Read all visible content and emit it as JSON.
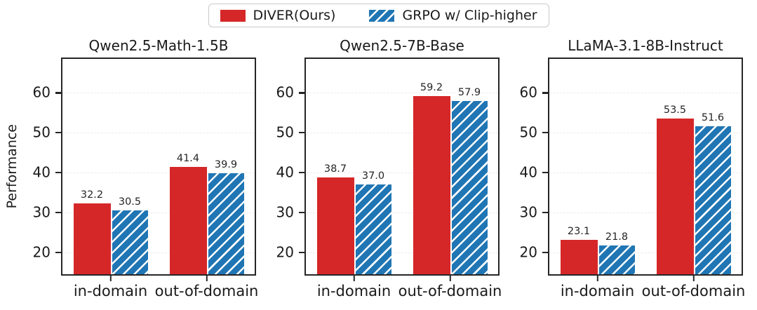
{
  "legend": {
    "items": [
      {
        "label": "DIVER(Ours)",
        "color": "#d62728",
        "hatch": false
      },
      {
        "label": "GRPO w/ Clip-higher",
        "color": "#2076b4",
        "hatch": true
      }
    ],
    "position": "top-center"
  },
  "ylabel": "Performance",
  "chart_data": [
    {
      "type": "bar",
      "title": "Qwen2.5-Math-1.5B",
      "categories": [
        "in-domain",
        "out-of-domain"
      ],
      "series": [
        {
          "name": "DIVER(Ours)",
          "color": "#d62728",
          "hatch": false,
          "values": [
            32.2,
            41.4
          ]
        },
        {
          "name": "GRPO w/ Clip-higher",
          "color": "#2076b4",
          "hatch": true,
          "values": [
            30.5,
            39.9
          ]
        }
      ],
      "xlabel": "",
      "ylabel": "Performance",
      "ylim": [
        14.5,
        68.5
      ],
      "yticks": [
        20,
        30,
        40,
        50,
        60
      ],
      "grid": true,
      "value_labels": true
    },
    {
      "type": "bar",
      "title": "Qwen2.5-7B-Base",
      "categories": [
        "in-domain",
        "out-of-domain"
      ],
      "series": [
        {
          "name": "DIVER(Ours)",
          "color": "#d62728",
          "hatch": false,
          "values": [
            38.7,
            59.2
          ]
        },
        {
          "name": "GRPO w/ Clip-higher",
          "color": "#2076b4",
          "hatch": true,
          "values": [
            37.0,
            57.9
          ]
        }
      ],
      "xlabel": "",
      "ylabel": "",
      "ylim": [
        14.5,
        68.5
      ],
      "yticks": [
        20,
        30,
        40,
        50,
        60
      ],
      "grid": true,
      "value_labels": true
    },
    {
      "type": "bar",
      "title": "LLaMA-3.1-8B-Instruct",
      "categories": [
        "in-domain",
        "out-of-domain"
      ],
      "series": [
        {
          "name": "DIVER(Ours)",
          "color": "#d62728",
          "hatch": false,
          "values": [
            23.1,
            53.5
          ]
        },
        {
          "name": "GRPO w/ Clip-higher",
          "color": "#2076b4",
          "hatch": true,
          "values": [
            21.8,
            51.6
          ]
        }
      ],
      "xlabel": "",
      "ylabel": "",
      "ylim": [
        14.5,
        68.5
      ],
      "yticks": [
        20,
        30,
        40,
        50,
        60
      ],
      "grid": true,
      "value_labels": true
    }
  ]
}
